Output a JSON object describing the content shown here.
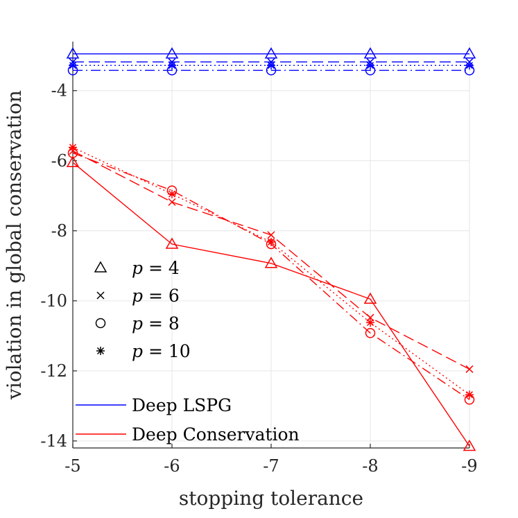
{
  "chart_data": {
    "type": "line",
    "title": "",
    "xlabel": "stopping tolerance",
    "ylabel": "violation in global conservation",
    "x": [
      -5,
      -6,
      -7,
      -8,
      -9
    ],
    "x_tick_labels": [
      "-5",
      "-6",
      "-7",
      "-8",
      "-9"
    ],
    "y_ticks": [
      -4,
      -6,
      -8,
      -10,
      -12,
      -14
    ],
    "y_tick_labels": [
      "-4",
      "-6",
      "-8",
      "-10",
      "-12",
      "-14"
    ],
    "xlim": [
      -5,
      -9
    ],
    "ylim": [
      -14.2,
      -2.6
    ],
    "grid": true,
    "colors": {
      "lspg": "#0000ff",
      "conservation": "#ff0000",
      "axis": "#262626",
      "grid": "#e6e6e6"
    },
    "series": [
      {
        "name": "Deep LSPG p = 4",
        "method": "lspg",
        "p": 4,
        "dash": "solid",
        "marker": "triangle",
        "values": [
          -2.95,
          -2.95,
          -2.95,
          -2.95,
          -2.95
        ]
      },
      {
        "name": "Deep LSPG p = 6",
        "method": "lspg",
        "p": 6,
        "dash": "dashed",
        "marker": "x",
        "values": [
          -3.18,
          -3.18,
          -3.18,
          -3.18,
          -3.18
        ]
      },
      {
        "name": "Deep LSPG p = 8",
        "method": "lspg",
        "p": 8,
        "dash": "dashdot",
        "marker": "circle",
        "values": [
          -3.42,
          -3.42,
          -3.42,
          -3.42,
          -3.42
        ]
      },
      {
        "name": "Deep LSPG p = 10",
        "method": "lspg",
        "p": 10,
        "dash": "dotted",
        "marker": "star",
        "values": [
          -3.28,
          -3.28,
          -3.28,
          -3.28,
          -3.28
        ]
      },
      {
        "name": "Deep Conservation p = 4",
        "method": "conservation",
        "p": 4,
        "dash": "solid",
        "marker": "triangle",
        "values": [
          -6.05,
          -8.38,
          -8.93,
          -9.95,
          -14.15
        ]
      },
      {
        "name": "Deep Conservation p = 6",
        "method": "conservation",
        "p": 6,
        "dash": "dashed",
        "marker": "x",
        "values": [
          -5.72,
          -7.18,
          -8.12,
          -10.48,
          -11.95
        ]
      },
      {
        "name": "Deep Conservation p = 8",
        "method": "conservation",
        "p": 8,
        "dash": "dashdot",
        "marker": "circle",
        "values": [
          -5.78,
          -6.85,
          -8.38,
          -10.92,
          -12.82
        ]
      },
      {
        "name": "Deep Conservation p = 10",
        "method": "conservation",
        "p": 10,
        "dash": "dotted",
        "marker": "star",
        "values": [
          -5.62,
          -6.95,
          -8.32,
          -10.62,
          -12.68
        ]
      }
    ],
    "legend_markers": [
      {
        "marker": "triangle",
        "var": "p",
        "label": "= 4"
      },
      {
        "marker": "x",
        "var": "p",
        "label": "= 6"
      },
      {
        "marker": "circle",
        "var": "p",
        "label": "= 8"
      },
      {
        "marker": "star",
        "var": "p",
        "label": "= 10"
      }
    ],
    "legend_lines": [
      {
        "method": "lspg",
        "label": "Deep LSPG"
      },
      {
        "method": "conservation",
        "label": "Deep Conservation"
      }
    ],
    "legend_placement": "bottom-left"
  }
}
